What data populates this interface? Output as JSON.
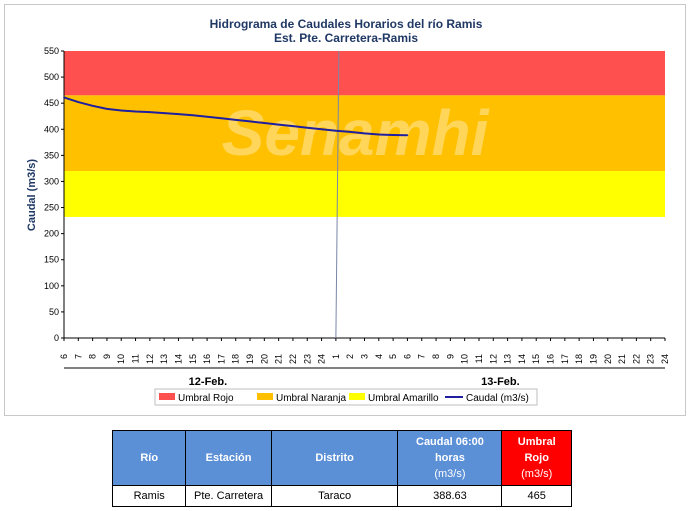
{
  "chart_data": {
    "type": "line",
    "title": "Hidrograma de Caudales Horarios del río Ramis",
    "subtitle": "Est. Pte. Carretera-Ramis",
    "ylabel": "Caudal  (m3/s)",
    "ylim": [
      0,
      550
    ],
    "yticks": [
      0,
      50,
      100,
      150,
      200,
      250,
      300,
      350,
      400,
      450,
      500,
      550
    ],
    "xtick_labels": [
      "6",
      "7",
      "8",
      "9",
      "10",
      "11",
      "12",
      "13",
      "14",
      "15",
      "16",
      "17",
      "18",
      "19",
      "20",
      "21",
      "22",
      "23",
      "24",
      "1",
      "2",
      "3",
      "4",
      "5",
      "6",
      "7",
      "8",
      "9",
      "10",
      "11",
      "12",
      "13",
      "14",
      "15",
      "16",
      "17",
      "18",
      "19",
      "20",
      "21",
      "22",
      "23",
      "24"
    ],
    "day_labels": [
      "12-Feb.",
      "13-Feb."
    ],
    "current_marker_hour": "1",
    "threshold_bands": [
      {
        "name": "Umbral Rojo",
        "from": 465,
        "to": 550,
        "color": "#ff5050"
      },
      {
        "name": "Umbral Naranja",
        "from": 320,
        "to": 465,
        "color": "#ffc000"
      },
      {
        "name": "Umbral Amarillo",
        "from": 232,
        "to": 320,
        "color": "#ffff00"
      }
    ],
    "series": [
      {
        "name": "Caudal (m3/s)",
        "color": "#1f1fa0",
        "x_index": [
          0,
          1,
          2,
          3,
          4,
          5,
          6,
          7,
          8,
          9,
          10,
          11,
          12,
          13,
          14,
          15,
          16,
          17,
          18,
          19,
          20,
          21,
          22,
          23,
          24
        ],
        "values": [
          461,
          452,
          445,
          439,
          436,
          434,
          433,
          431,
          429,
          427,
          424,
          421,
          418,
          415,
          412,
          409,
          406,
          403,
          400,
          397,
          395,
          392,
          390,
          389,
          388.63
        ]
      }
    ],
    "legend_position": "bottom"
  },
  "watermark": "Senamhi",
  "table": {
    "headers": {
      "rio": "Río",
      "estacion": "Estación",
      "distrito": "Distrito",
      "caudal_line1": "Caudal 06:00",
      "caudal_line2": "horas",
      "caudal_unit": "(m3/s)",
      "umbral_line1": "Umbral",
      "umbral_line2": "Rojo",
      "umbral_unit": "(m3/s)"
    },
    "row": {
      "rio": "Ramis",
      "estacion": "Pte. Carretera",
      "distrito": "Taraco",
      "caudal": "388.63",
      "umbral": "465"
    }
  }
}
